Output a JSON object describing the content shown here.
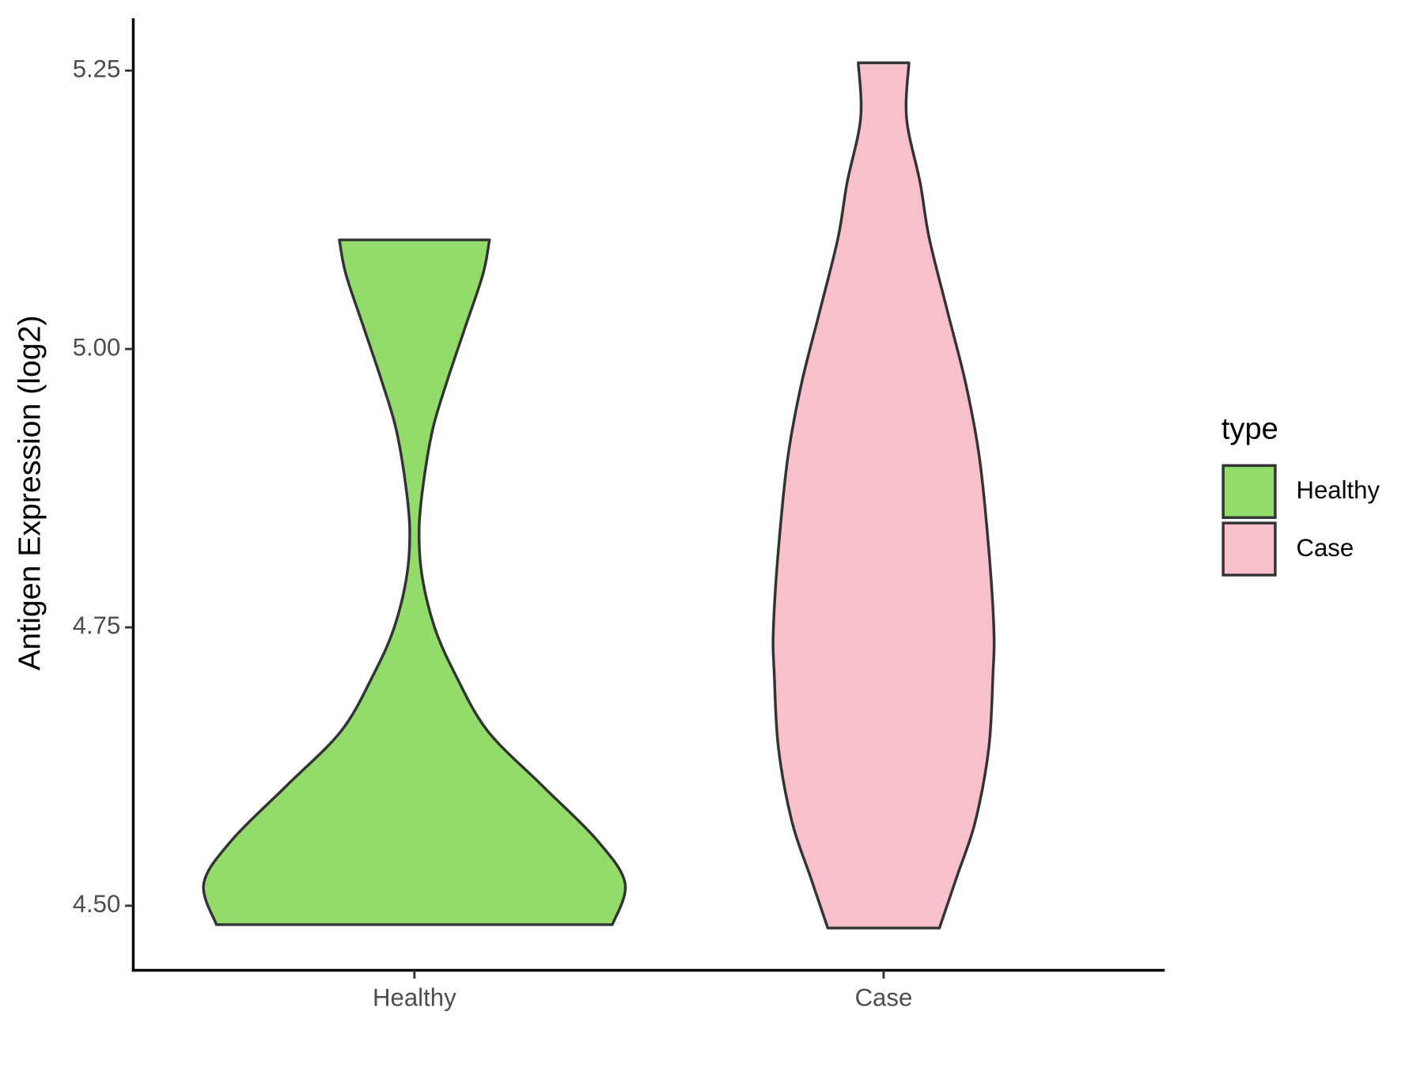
{
  "chart_data": {
    "type": "violin",
    "y_label": "Antigen Expression (log2)",
    "ylim": [
      4.442,
      5.297
    ],
    "yticks": [
      {
        "value": 4.5,
        "label": "4.50"
      },
      4.75,
      {
        "value": 5,
        "label": "5.00"
      },
      5.25
    ],
    "categories": [
      "Healthy",
      "Case"
    ],
    "legend_title": "type",
    "series": [
      {
        "name": "Healthy",
        "color": "#93db6b",
        "y": [
          4.483,
          4.52,
          4.559,
          4.608,
          4.657,
          4.707,
          4.75,
          4.797,
          4.838,
          4.879,
          4.928,
          4.969,
          5.018,
          5.067,
          5.098
        ],
        "widths": [
          0.422,
          0.449,
          0.389,
          0.272,
          0.156,
          0.088,
          0.043,
          0.016,
          0.01,
          0.019,
          0.039,
          0.068,
          0.107,
          0.146,
          0.16
        ]
      },
      {
        "name": "Case",
        "color": "#f7c0cb",
        "y": [
          4.48,
          4.526,
          4.575,
          4.641,
          4.707,
          4.748,
          4.821,
          4.903,
          4.969,
          5.034,
          5.1,
          5.149,
          5.207,
          5.257
        ],
        "widths": [
          0.119,
          0.156,
          0.195,
          0.224,
          0.233,
          0.235,
          0.224,
          0.204,
          0.175,
          0.136,
          0.097,
          0.078,
          0.049,
          0.054
        ]
      }
    ]
  }
}
